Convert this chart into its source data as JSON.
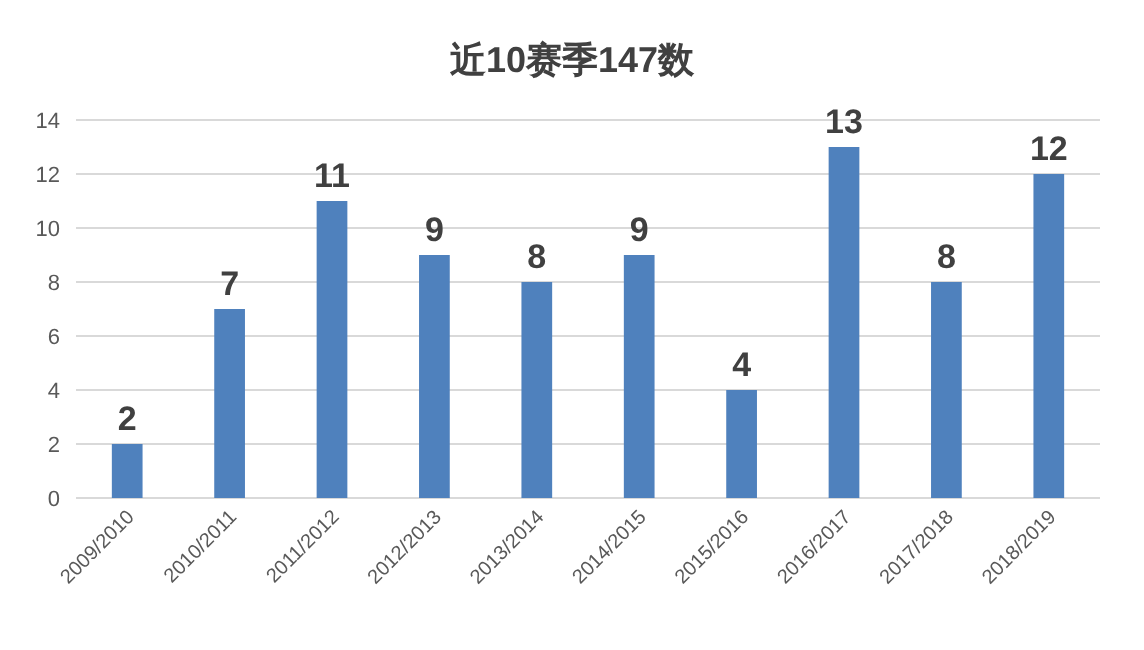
{
  "chart_data": {
    "type": "bar",
    "title": "近10赛季147数",
    "categories": [
      "2009/2010",
      "2010/2011",
      "2011/2012",
      "2012/2013",
      "2013/2014",
      "2014/2015",
      "2015/2016",
      "2016/2017",
      "2017/2018",
      "2018/2019"
    ],
    "values": [
      2,
      7,
      11,
      9,
      8,
      9,
      4,
      13,
      8,
      12
    ],
    "color": "#4f81bd",
    "ylim": [
      0,
      14
    ],
    "yticks": [
      0,
      2,
      4,
      6,
      8,
      10,
      12,
      14
    ],
    "grid": "y",
    "data_labels": true
  }
}
